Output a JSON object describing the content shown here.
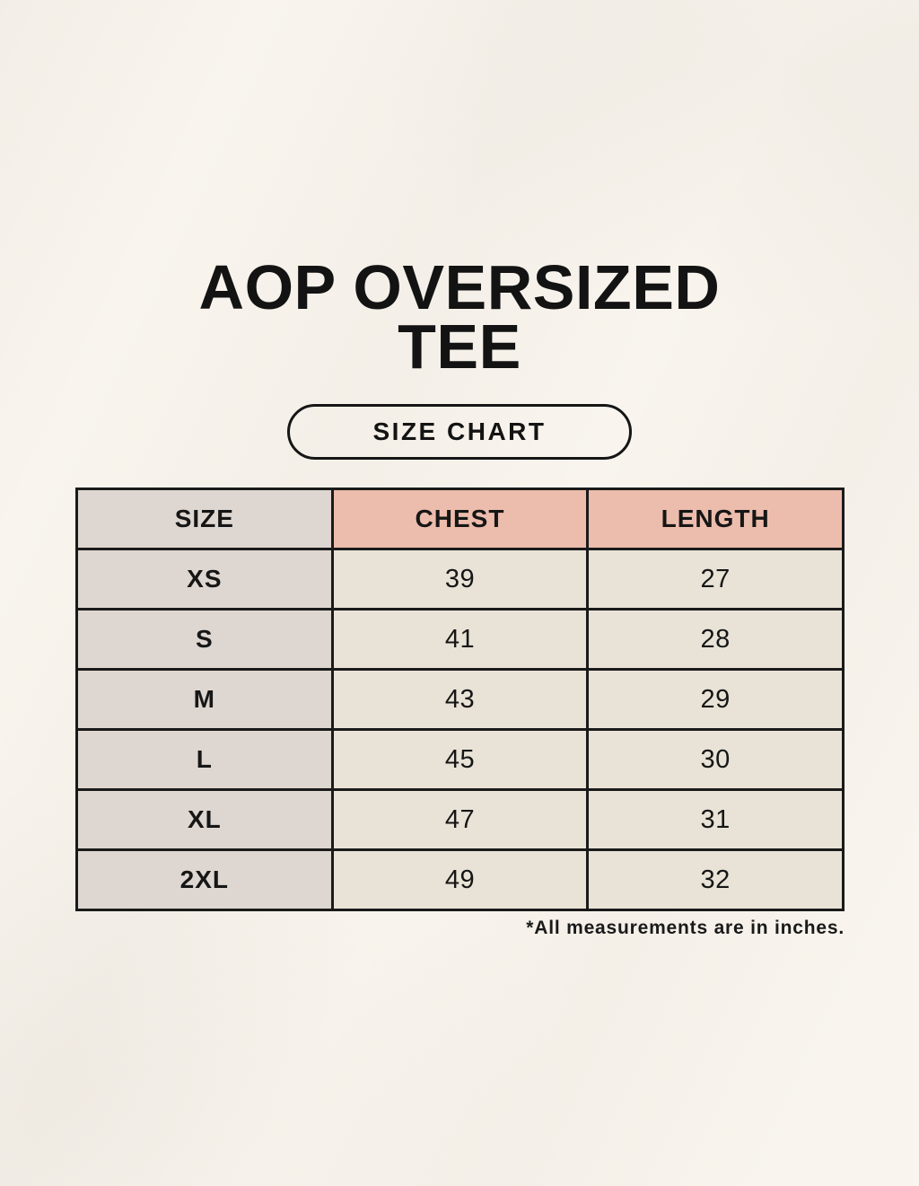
{
  "page": {
    "title_line1": "AOP OVERSIZED",
    "title_line2": "TEE",
    "badge_label": "SIZE CHART",
    "footnote": "*All measurements are in inches."
  },
  "size_table": {
    "columns": [
      "SIZE",
      "CHEST",
      "LENGTH"
    ],
    "rows": [
      {
        "size": "XS",
        "chest": "39",
        "length": "27"
      },
      {
        "size": "S",
        "chest": "41",
        "length": "28"
      },
      {
        "size": "M",
        "chest": "43",
        "length": "29"
      },
      {
        "size": "L",
        "chest": "45",
        "length": "30"
      },
      {
        "size": "XL",
        "chest": "47",
        "length": "31"
      },
      {
        "size": "2XL",
        "chest": "49",
        "length": "32"
      }
    ],
    "units_note": "inches"
  },
  "colors": {
    "background": "#f9f5ee",
    "header_accent_pink": "#ecbcac",
    "size_column_gray": "#ded6d0",
    "data_cell_cream": "#e9e3d7",
    "border_black": "#1a1a1a",
    "text": "#161616"
  }
}
